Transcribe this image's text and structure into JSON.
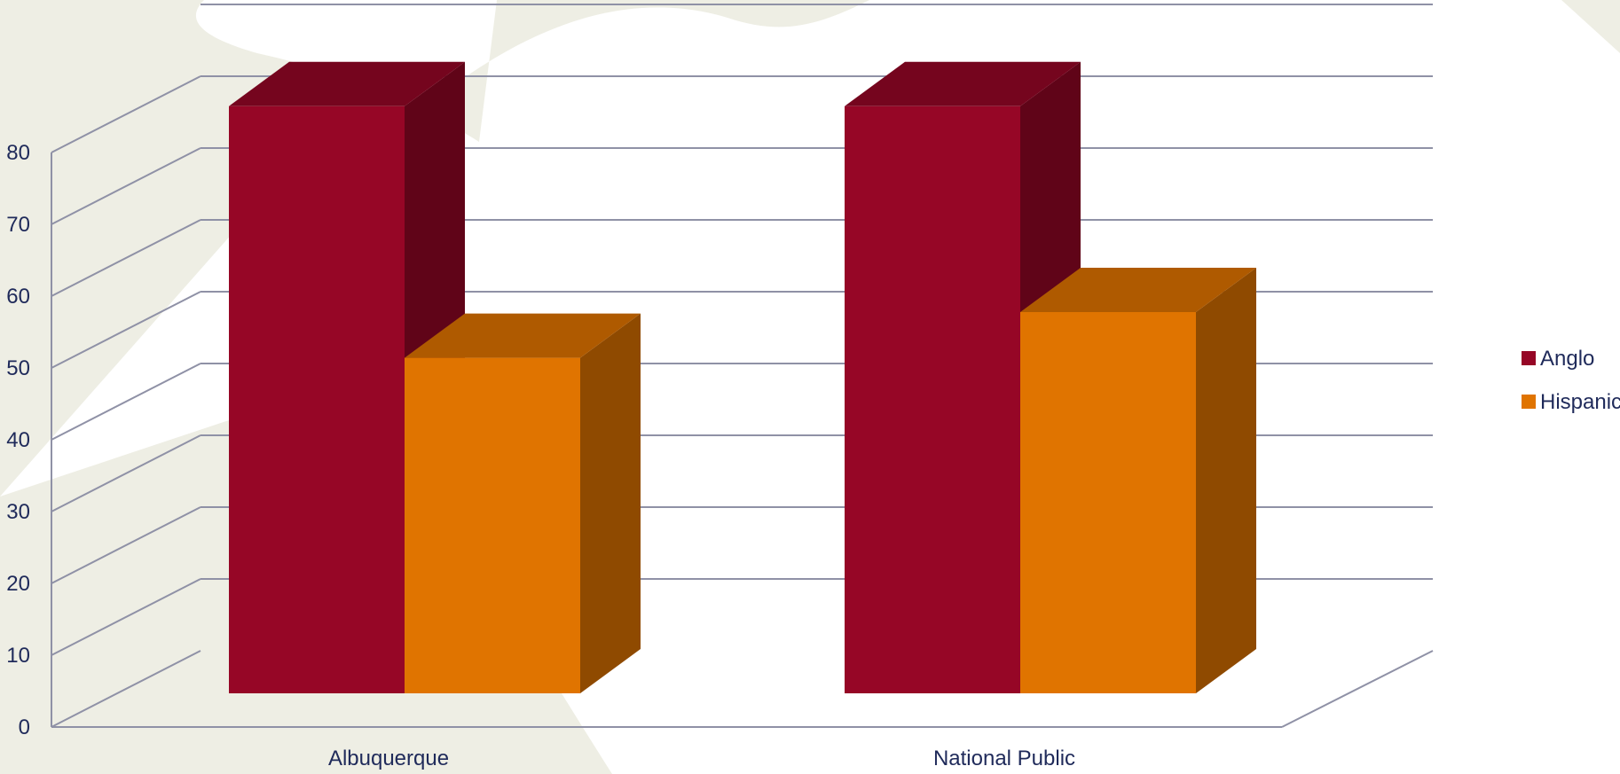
{
  "chart_data": {
    "type": "bar",
    "style": "3d-clustered-column",
    "title": "",
    "xlabel": "",
    "ylabel": "",
    "categories": [
      "Albuquerque",
      "National Public"
    ],
    "series": [
      {
        "name": "Anglo",
        "values": [
          77,
          77
        ],
        "color": "#960626"
      },
      {
        "name": "Hispanic",
        "values": [
          44,
          50
        ],
        "color": "#e07400"
      }
    ],
    "ylim": [
      0,
      80
    ],
    "yticks": [
      0,
      10,
      20,
      30,
      40,
      50,
      60,
      70,
      80
    ],
    "grid": true,
    "legend": "right"
  },
  "colors": {
    "axis_text": "#1f2a5a",
    "gridline": "#8f91a6",
    "background_decor": "#eeeee4"
  }
}
